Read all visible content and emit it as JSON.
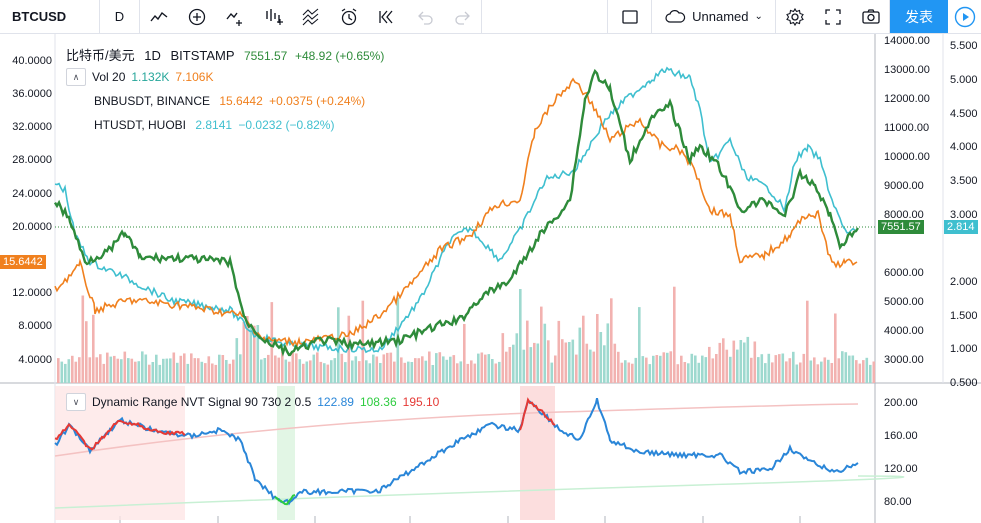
{
  "toolbar": {
    "symbol": "BTCUSD",
    "interval": "D",
    "layout_name": "Unnamed",
    "publish_label": "发表"
  },
  "legend": {
    "main": {
      "title": "比特币/美元",
      "interval": "1D",
      "exchange": "BITSTAMP",
      "last": "7551.57",
      "change": "+48.92 (+0.65%)"
    },
    "volume": {
      "name": "Vol 20",
      "v1": "1.132K",
      "v2": "7.106K"
    },
    "bnb": {
      "name": "BNBUSDT, BINANCE",
      "last": "15.6442",
      "change": "+0.0375 (+0.24%)"
    },
    "ht": {
      "name": "HTUSDT, HUOBI",
      "last": "2.8141",
      "change": "−0.0232 (−0.82%)"
    },
    "nvt": {
      "name": "Dynamic Range NVT Signal 90 730 2 0.5",
      "v1": "122.89",
      "v2": "108.36",
      "v3": "195.10"
    }
  },
  "axes": {
    "left_ticks": [
      "40.0000",
      "36.0000",
      "32.0000",
      "28.0000",
      "24.0000",
      "20.0000",
      "12.0000",
      "8.0000",
      "4.0000"
    ],
    "right_main_ticks": [
      "14000.00",
      "13000.00",
      "12000.00",
      "11000.00",
      "10000.00",
      "9000.00",
      "8000.00",
      "6000.00",
      "5000.00",
      "4000.00",
      "3000.00"
    ],
    "right_far_ticks": [
      "5.500",
      "5.000",
      "4.500",
      "4.000",
      "3.500",
      "3.000",
      "2.000",
      "1.500",
      "1.000",
      "0.500"
    ],
    "nvt_ticks": [
      "200.00",
      "160.00",
      "120.00",
      "80.00"
    ]
  },
  "price_tags": {
    "left_bnb": "15.6442",
    "btc": "7551.57",
    "ht": "2.814"
  },
  "colors": {
    "btc": "#2e8b3a",
    "bnb": "#f0801e",
    "ht": "#3fbfcf",
    "nvt": "#2a86d8",
    "nvt_high": "#e53935",
    "nvt_low": "#2ecc40",
    "vol_up": "#9ed9cf",
    "vol_down": "#f2b2b0",
    "publish": "#2196f3"
  },
  "icons": [
    "bar-style-icon",
    "indicators-icon",
    "compare-icon",
    "templates-icon",
    "alert-icon",
    "replay-icon",
    "undo-icon",
    "redo-icon",
    "fullscreen-checkbox-icon",
    "cloud-icon",
    "settings-icon",
    "fullscreen-icon",
    "camera-icon",
    "play-icon"
  ]
}
